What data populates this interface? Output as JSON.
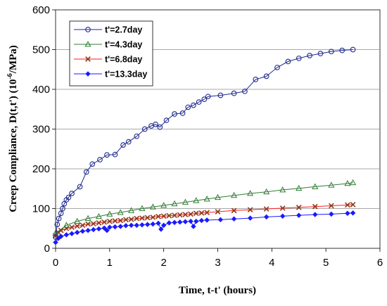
{
  "chart_data": {
    "type": "line",
    "title": "",
    "xlabel": "Time, t-t' (hours)",
    "ylabel_main": "Creep Compliance, D(t,t') (10",
    "ylabel_sup": "-6",
    "ylabel_tail": "/MPa)",
    "xlim": [
      0,
      6
    ],
    "ylim": [
      0,
      600
    ],
    "x_ticks": [
      0,
      1,
      2,
      3,
      4,
      5,
      6
    ],
    "y_ticks": [
      0,
      100,
      200,
      300,
      400,
      500,
      600
    ],
    "x_tick_labels": [
      "0",
      "1",
      "2",
      "3",
      "4",
      "5",
      "6"
    ],
    "y_tick_labels": [
      "0",
      "100",
      "200",
      "300",
      "400",
      "500",
      "600"
    ],
    "grid": "horizontal",
    "legend_position": "top-left",
    "series": [
      {
        "name": "t'=2.7day",
        "color": "#1f2a8c",
        "marker": "circle",
        "x": [
          0.0,
          0.03,
          0.06,
          0.1,
          0.13,
          0.16,
          0.2,
          0.24,
          0.3,
          0.45,
          0.57,
          0.68,
          0.82,
          0.95,
          1.1,
          1.25,
          1.35,
          1.5,
          1.65,
          1.77,
          1.85,
          1.93,
          2.05,
          2.2,
          2.35,
          2.45,
          2.55,
          2.65,
          2.75,
          2.82,
          3.05,
          3.3,
          3.5,
          3.7,
          3.9,
          4.1,
          4.3,
          4.5,
          4.7,
          4.9,
          5.1,
          5.3,
          5.5
        ],
        "y": [
          28,
          60,
          75,
          88,
          100,
          112,
          122,
          128,
          138,
          155,
          192,
          212,
          223,
          235,
          236,
          260,
          268,
          282,
          300,
          308,
          312,
          305,
          322,
          338,
          340,
          355,
          360,
          368,
          375,
          382,
          385,
          390,
          395,
          425,
          433,
          455,
          470,
          478,
          485,
          490,
          495,
          498,
          500
        ]
      },
      {
        "name": "t'=4.3day",
        "color": "#2e7d32",
        "marker": "triangle",
        "x": [
          0.0,
          0.2,
          0.4,
          0.6,
          0.8,
          1.0,
          1.2,
          1.4,
          1.6,
          1.8,
          2.0,
          2.2,
          2.4,
          2.6,
          2.8,
          3.0,
          3.3,
          3.6,
          3.9,
          4.2,
          4.5,
          4.8,
          5.1,
          5.4,
          5.5
        ],
        "y": [
          38,
          58,
          68,
          75,
          80,
          86,
          90,
          95,
          100,
          104,
          108,
          112,
          116,
          120,
          124,
          128,
          133,
          138,
          142,
          147,
          151,
          155,
          159,
          163,
          165
        ]
      },
      {
        "name": "t'=6.8day",
        "color": "#ff1a1a",
        "marker_color": "#8b3a1a",
        "marker": "x",
        "x": [
          0.0,
          0.05,
          0.1,
          0.2,
          0.3,
          0.4,
          0.5,
          0.6,
          0.7,
          0.8,
          0.9,
          1.0,
          1.1,
          1.2,
          1.3,
          1.4,
          1.5,
          1.6,
          1.7,
          1.8,
          1.9,
          2.0,
          2.1,
          2.2,
          2.3,
          2.4,
          2.5,
          2.6,
          2.7,
          2.8,
          3.0,
          3.3,
          3.6,
          3.9,
          4.2,
          4.5,
          4.8,
          5.1,
          5.4,
          5.5
        ],
        "y": [
          32,
          40,
          45,
          50,
          53,
          56,
          58,
          61,
          62,
          64,
          66,
          68,
          69,
          70,
          72,
          73,
          75,
          76,
          77,
          78,
          80,
          81,
          82,
          83,
          84,
          85,
          86,
          88,
          89,
          90,
          92,
          95,
          97,
          99,
          101,
          103,
          105,
          107,
          109,
          110
        ]
      },
      {
        "name": "t'=13.3day",
        "color": "#1a1aff",
        "marker": "diamond",
        "x": [
          0.0,
          0.05,
          0.1,
          0.2,
          0.3,
          0.4,
          0.5,
          0.6,
          0.7,
          0.8,
          0.9,
          0.95,
          1.0,
          1.1,
          1.2,
          1.3,
          1.4,
          1.5,
          1.6,
          1.7,
          1.8,
          1.9,
          1.95,
          2.0,
          2.1,
          2.2,
          2.3,
          2.4,
          2.5,
          2.55,
          2.6,
          2.7,
          2.8,
          3.05,
          3.3,
          3.6,
          3.9,
          4.2,
          4.5,
          4.8,
          5.1,
          5.4,
          5.5
        ],
        "y": [
          15,
          25,
          30,
          34,
          37,
          40,
          43,
          45,
          47,
          49,
          51,
          45,
          53,
          54,
          55,
          57,
          58,
          58,
          59,
          60,
          61,
          63,
          48,
          58,
          64,
          65,
          66,
          67,
          68,
          55,
          68,
          70,
          71,
          72,
          74,
          76,
          79,
          81,
          83,
          85,
          86,
          88,
          89
        ]
      }
    ]
  }
}
